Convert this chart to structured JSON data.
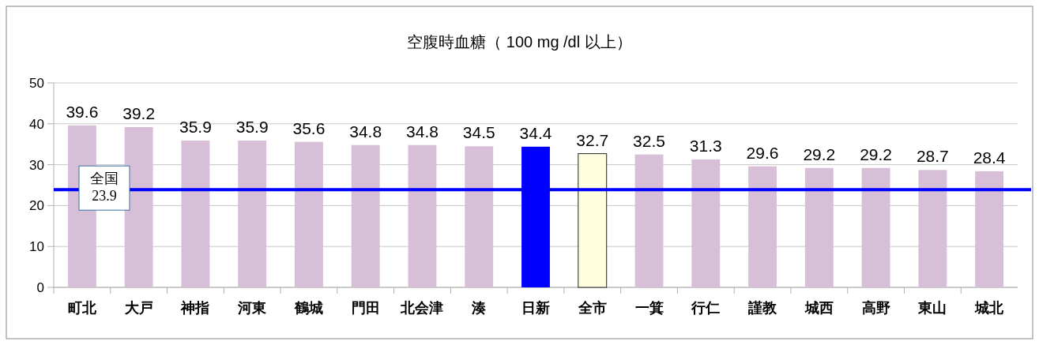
{
  "chart_data": {
    "type": "bar",
    "title": "空腹時血糖（ 100 mg /dl 以上）",
    "categories": [
      "町北",
      "大戸",
      "神指",
      "河東",
      "鶴城",
      "門田",
      "北会津",
      "湊",
      "日新",
      "全市",
      "一箕",
      "行仁",
      "謹教",
      "城西",
      "高野",
      "東山",
      "城北"
    ],
    "values": [
      39.6,
      39.2,
      35.9,
      35.9,
      35.6,
      34.8,
      34.8,
      34.5,
      34.4,
      32.7,
      32.5,
      31.3,
      29.6,
      29.2,
      29.2,
      28.7,
      28.4
    ],
    "colors": [
      "#d8bfd8",
      "#d8bfd8",
      "#d8bfd8",
      "#d8bfd8",
      "#d8bfd8",
      "#d8bfd8",
      "#d8bfd8",
      "#d8bfd8",
      "#0000ff",
      "#ffffe0",
      "#d8bfd8",
      "#d8bfd8",
      "#d8bfd8",
      "#d8bfd8",
      "#d8bfd8",
      "#d8bfd8",
      "#d8bfd8"
    ],
    "ylim": [
      0,
      50
    ],
    "yticks": [
      0,
      10,
      20,
      30,
      40,
      50
    ],
    "grid": "y",
    "data_labels": true,
    "ref_lines": [
      {
        "axis": "y",
        "value": 23.9,
        "label": "全国 23.9",
        "color": "#0000ff"
      }
    ]
  }
}
